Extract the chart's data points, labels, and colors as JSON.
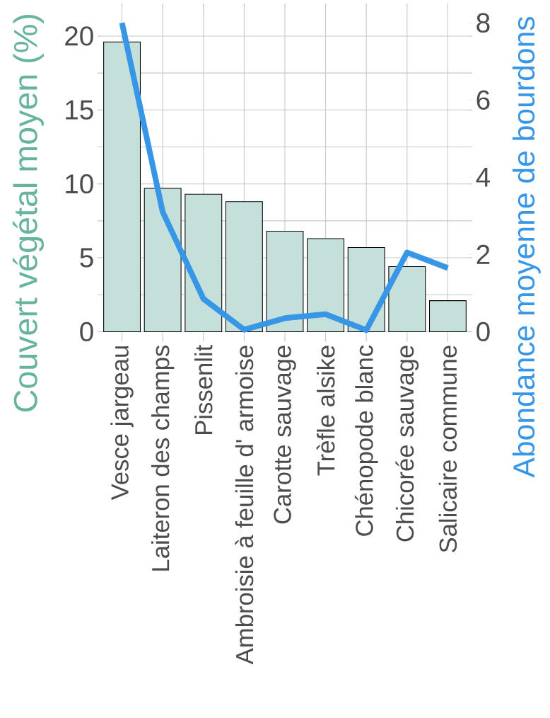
{
  "chart_data": {
    "type": "bar",
    "ylabel": "Couvert végétal moyen (%)",
    "y2label": "Abondance moyenne de bourdons",
    "categories": [
      "Vesce jargeau",
      "Laiteron des champs",
      "Pissenlit",
      "Ambroisie à feuille d' armoise",
      "Carotte sauvage",
      "Trèfle alsike",
      "Chénopode blanc",
      "Chicorée sauvage",
      "Salicaire commune"
    ],
    "series": [
      {
        "color": "#c5e0da",
        "values": [
          19.6,
          9.7,
          9.3,
          8.8,
          6.8,
          6.3,
          5.7,
          4.4,
          2.1
        ]
      },
      {
        "type": "line",
        "axis": "y2",
        "color": "#3796e6",
        "values": [
          8.0,
          3.1,
          0.85,
          0.05,
          0.35,
          0.45,
          0.04,
          2.05,
          1.65
        ]
      }
    ],
    "ylim": [
      -0.65,
      22.2
    ],
    "yticks": [
      0,
      5,
      10,
      15,
      20
    ],
    "y2lim": [
      -0.25,
      8.5
    ],
    "y2ticks": [
      0,
      2,
      4,
      6,
      8
    ],
    "grid": true
  }
}
